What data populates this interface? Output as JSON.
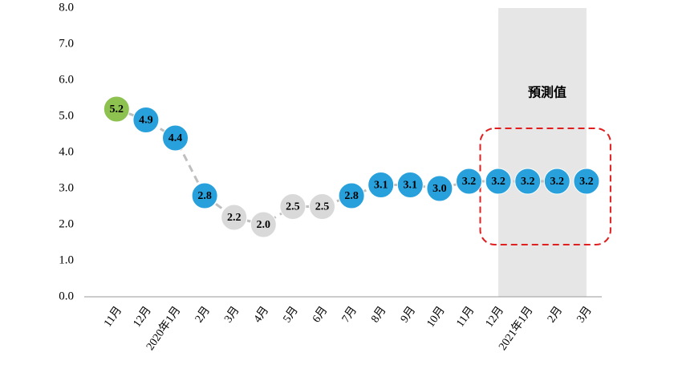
{
  "chart_data": {
    "type": "line",
    "categories": [
      "11月",
      "12月",
      "2020年1月",
      "2月",
      "3月",
      "4月",
      "5月",
      "6月",
      "7月",
      "8月",
      "9月",
      "10月",
      "11月",
      "12月",
      "2021年1月",
      "2月",
      "3月"
    ],
    "values": [
      5.2,
      4.9,
      4.4,
      2.8,
      2.2,
      2.0,
      2.5,
      2.5,
      2.8,
      3.1,
      3.1,
      3.0,
      3.2,
      3.2,
      3.2,
      3.2,
      3.2
    ],
    "value_labels": [
      "5.2",
      "4.9",
      "4.4",
      "2.8",
      "2.2",
      "2.0",
      "2.5",
      "2.5",
      "2.8",
      "3.1",
      "3.1",
      "3.0",
      "3.2",
      "3.2",
      "3.2",
      "3.2",
      "3.2"
    ],
    "point_colors": [
      "#8dc150",
      "#27a0dc",
      "#27a0dc",
      "#27a0dc",
      "#d9d9d9",
      "#d9d9d9",
      "#d9d9d9",
      "#d9d9d9",
      "#27a0dc",
      "#27a0dc",
      "#27a0dc",
      "#27a0dc",
      "#27a0dc",
      "#27a0dc",
      "#27a0dc",
      "#27a0dc",
      "#27a0dc"
    ],
    "line_color": "#bfbfbf",
    "ylim": [
      0,
      8
    ],
    "yticks": [
      {
        "value": 0,
        "label": "0.0"
      },
      {
        "value": 1,
        "label": "1.0"
      },
      {
        "value": 2,
        "label": "2.0"
      },
      {
        "value": 3,
        "label": "3.0"
      },
      {
        "value": 4,
        "label": "4.0"
      },
      {
        "value": 5,
        "label": "5.0"
      },
      {
        "value": 6,
        "label": "6.0"
      },
      {
        "value": 7,
        "label": "7.0"
      },
      {
        "value": 8,
        "label": "8.0"
      }
    ],
    "annotation": "預測值",
    "annotation_color": "#e02020"
  }
}
